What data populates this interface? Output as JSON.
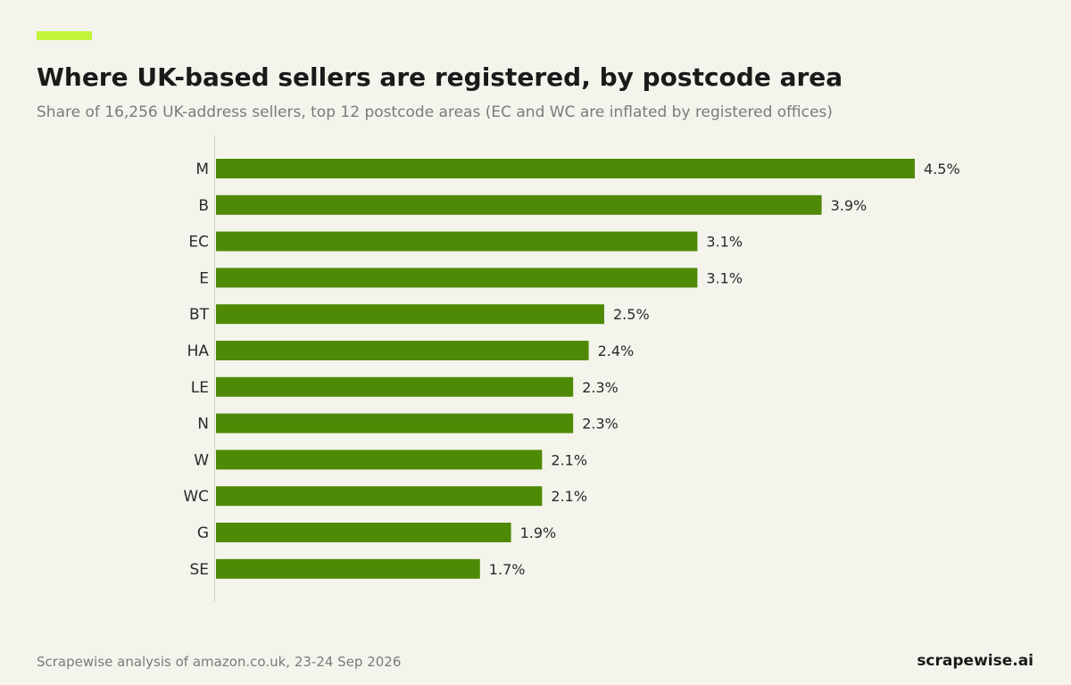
{
  "header": {
    "title": "Where UK-based sellers are registered, by postcode area",
    "subtitle": "Share of 16,256 UK-address sellers, top 12 postcode areas (EC and WC are inflated by registered offices)"
  },
  "footer": {
    "source": "Scrapewise analysis of amazon.co.uk, 23-24 Sep 2026",
    "brand": "scrapewise.ai"
  },
  "colors": {
    "accent": "#c3f53c",
    "bar": "#4e8a05",
    "background": "#f5f4ec"
  },
  "chart_data": {
    "type": "bar",
    "orientation": "horizontal",
    "title": "Where UK-based sellers are registered, by postcode area",
    "subtitle": "Share of 16,256 UK-address sellers, top 12 postcode areas (EC and WC are inflated by registered offices)",
    "categories": [
      "M",
      "B",
      "EC",
      "E",
      "BT",
      "HA",
      "LE",
      "N",
      "W",
      "WC",
      "G",
      "SE"
    ],
    "values": [
      4.5,
      3.9,
      3.1,
      3.1,
      2.5,
      2.4,
      2.3,
      2.3,
      2.1,
      2.1,
      1.9,
      1.7
    ],
    "value_labels": [
      "4.5%",
      "3.9%",
      "3.1%",
      "3.1%",
      "2.5%",
      "2.4%",
      "2.3%",
      "2.3%",
      "2.1%",
      "2.1%",
      "1.9%",
      "1.7%"
    ],
    "unit": "%",
    "xlim": [
      0,
      4.5
    ],
    "grid": false,
    "legend": "none"
  }
}
